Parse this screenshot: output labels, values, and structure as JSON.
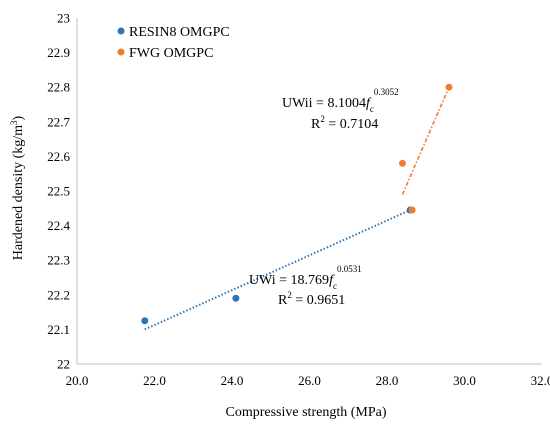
{
  "chart_data": {
    "type": "scatter",
    "xlabel": "Compressive strength (MPa)",
    "ylabel": "Hardened density (kg/m³)",
    "ylabel_parts": {
      "main": "Hardened density (kg/m",
      "sup": "3",
      "end": ")"
    },
    "xlim": [
      20.0,
      32.0
    ],
    "ylim": [
      22.0,
      23.0
    ],
    "x_ticks": [
      20.0,
      22.0,
      24.0,
      26.0,
      28.0,
      30.0,
      32.0
    ],
    "x_tick_labels": [
      "20.0",
      "22.0",
      "24.0",
      "26.0",
      "28.0",
      "30.0",
      "32.0"
    ],
    "y_ticks": [
      22.0,
      22.1,
      22.2,
      22.3,
      22.4,
      22.5,
      22.6,
      22.7,
      22.8,
      22.9,
      23.0
    ],
    "y_tick_labels": [
      "22",
      "22.1",
      "22.2",
      "22.3",
      "22.4",
      "22.5",
      "22.6",
      "22.7",
      "22.8",
      "22.9",
      "23"
    ],
    "grid": false,
    "legend_position": "top-left",
    "series": [
      {
        "name": "RESIN8 OMGPC",
        "color": "#2e75b6",
        "points": [
          {
            "x": 21.75,
            "y": 22.125
          },
          {
            "x": 24.1,
            "y": 22.19
          },
          {
            "x": 28.6,
            "y": 22.445
          }
        ],
        "trendline": {
          "x": [
            21.75,
            28.6
          ],
          "y": [
            22.1,
            22.445
          ]
        },
        "equation": {
          "lhs": "UWi = 18.769",
          "var": "f",
          "sub": "c",
          "exp": "0.0531"
        },
        "r2": {
          "label": "R",
          "sup": "2",
          "value": " = 0.9651"
        }
      },
      {
        "name": "FWG OMGPC",
        "color": "#ed7d31",
        "points": [
          {
            "x": 28.4,
            "y": 22.58
          },
          {
            "x": 28.65,
            "y": 22.445
          },
          {
            "x": 29.6,
            "y": 22.8
          }
        ],
        "trendline": {
          "x": [
            28.4,
            29.6
          ],
          "y": [
            22.49,
            22.8
          ]
        },
        "equation": {
          "lhs": "UWii = 8.1004",
          "var": "f",
          "sub": "c",
          "exp": "0.3052"
        },
        "r2": {
          "label": "R",
          "sup": "2",
          "value": " = 0.7104"
        }
      }
    ]
  }
}
